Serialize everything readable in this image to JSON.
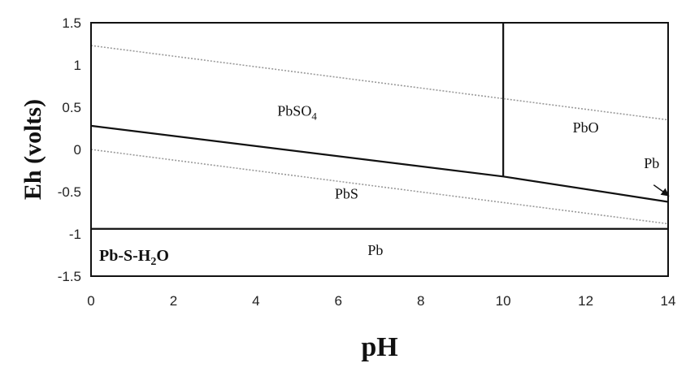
{
  "chart_data": {
    "type": "line",
    "title": "",
    "xlabel": "pH",
    "ylabel": "Eh (volts)",
    "xlim": [
      0,
      14
    ],
    "ylim": [
      -1.5,
      1.5
    ],
    "x_ticks": [
      "0",
      "2",
      "4",
      "6",
      "8",
      "10",
      "12",
      "14"
    ],
    "y_ticks": [
      "1.5",
      "1",
      "0.5",
      "0",
      "-0.5",
      "-1",
      "-1.5"
    ],
    "grid": false,
    "system_label": {
      "base": "Pb-S-H",
      "sub": "2",
      "tail": "O"
    },
    "region_labels": [
      {
        "name": "PbSO4",
        "base": "PbSO",
        "sub": "4",
        "x": 5.0,
        "y": 0.4
      },
      {
        "name": "PbO",
        "base": "PbO",
        "sub": "",
        "x": 12.0,
        "y": 0.2
      },
      {
        "name": "PbS",
        "base": "PbS",
        "sub": "",
        "x": 6.2,
        "y": -0.58
      },
      {
        "name": "Pb",
        "base": "Pb",
        "sub": "",
        "x": 6.9,
        "y": -1.25
      },
      {
        "name": "Pb",
        "base": "Pb",
        "sub": "",
        "x": 13.6,
        "y": -0.22
      }
    ],
    "series": [
      {
        "style": "solid",
        "color": "#111111",
        "x": [
          0,
          10,
          14
        ],
        "y": [
          0.28,
          -0.32,
          -0.62
        ]
      },
      {
        "style": "solid",
        "color": "#111111",
        "x": [
          10,
          10
        ],
        "y": [
          -0.32,
          1.5
        ]
      },
      {
        "style": "solid",
        "color": "#111111",
        "x": [
          0,
          14
        ],
        "y": [
          -0.94,
          -0.94
        ]
      },
      {
        "style": "dotted",
        "color": "#9a9a9a",
        "x": [
          0,
          14
        ],
        "y": [
          1.23,
          0.35
        ]
      },
      {
        "style": "dotted",
        "color": "#9a9a9a",
        "x": [
          0,
          14
        ],
        "y": [
          0.0,
          -0.88
        ]
      }
    ],
    "annotation_arrow": {
      "from": [
        13.65,
        -0.42
      ],
      "to": [
        14.0,
        -0.6
      ]
    }
  }
}
